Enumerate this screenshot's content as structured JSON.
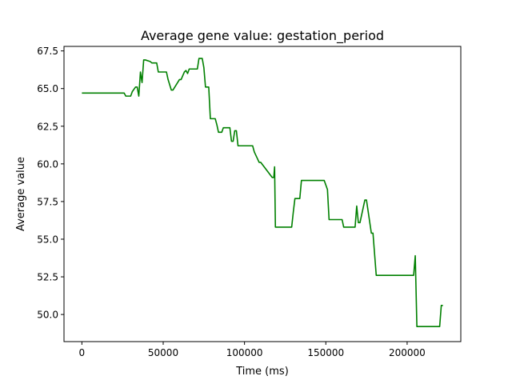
{
  "chart_data": {
    "type": "line",
    "title": "Average gene value: gestation_period",
    "xlabel": "Time (ms)",
    "ylabel": "Average value",
    "xlim": [
      -11000,
      233000
    ],
    "ylim": [
      48.2,
      67.8
    ],
    "xticks": [
      0,
      50000,
      100000,
      150000,
      200000
    ],
    "xtick_labels": [
      "0",
      "50000",
      "100000",
      "150000",
      "200000"
    ],
    "yticks": [
      50.0,
      52.5,
      55.0,
      57.5,
      60.0,
      62.5,
      65.0,
      67.5
    ],
    "ytick_labels": [
      "50.0",
      "52.5",
      "55.0",
      "57.5",
      "60.0",
      "62.5",
      "65.0",
      "67.5"
    ],
    "grid": false,
    "series": [
      {
        "color": "#008000",
        "x": [
          0,
          26000,
          27000,
          30000,
          31000,
          33000,
          34000,
          35000,
          36000,
          37000,
          38000,
          39000,
          42000,
          43000,
          46000,
          47000,
          52000,
          53000,
          55000,
          56000,
          60000,
          61000,
          63000,
          64000,
          65000,
          66000,
          71000,
          72000,
          74000,
          75000,
          76000,
          78000,
          79000,
          82000,
          83000,
          84000,
          86000,
          87000,
          91000,
          92000,
          93000,
          94000,
          95000,
          96000,
          105000,
          106000,
          109000,
          110000,
          117000,
          118000,
          118500,
          119000,
          129000,
          130000,
          131000,
          134000,
          135000,
          149000,
          151000,
          152000,
          160000,
          161000,
          168000,
          169000,
          170000,
          171000,
          174000,
          175000,
          178000,
          179000,
          181000,
          182000,
          204000,
          205000,
          206000,
          207000,
          220000,
          221000,
          222000
        ],
        "values": [
          64.7,
          64.7,
          64.5,
          64.5,
          64.8,
          65.1,
          65.1,
          64.5,
          66.1,
          65.4,
          66.9,
          66.9,
          66.8,
          66.7,
          66.7,
          66.1,
          66.1,
          65.6,
          64.9,
          64.9,
          65.6,
          65.6,
          66.1,
          66.2,
          66.0,
          66.3,
          66.3,
          67.0,
          67.0,
          66.4,
          65.1,
          65.1,
          63.0,
          63.0,
          62.6,
          62.1,
          62.1,
          62.4,
          62.4,
          61.5,
          61.5,
          62.2,
          62.2,
          61.2,
          61.2,
          60.8,
          60.1,
          60.1,
          59.1,
          59.1,
          59.8,
          55.8,
          55.8,
          56.8,
          57.7,
          57.7,
          58.9,
          58.9,
          58.3,
          56.3,
          56.3,
          55.8,
          55.8,
          57.2,
          56.1,
          56.1,
          57.6,
          57.6,
          55.4,
          55.4,
          52.6,
          52.6,
          52.6,
          53.9,
          49.2,
          49.2,
          49.2,
          50.6,
          50.6
        ]
      }
    ]
  }
}
